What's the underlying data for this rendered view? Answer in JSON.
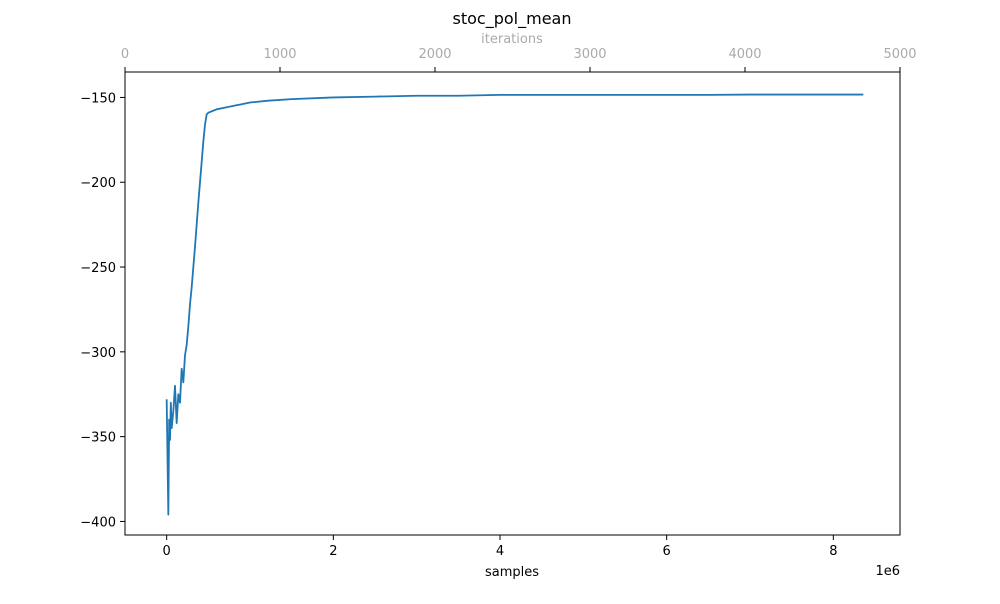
{
  "chart_data": {
    "type": "line",
    "title": "stoc_pol_mean",
    "xlabel": "samples",
    "x_offset_label": "1e6",
    "x_top_label": "iterations",
    "ylabel": "",
    "xlim": [
      -0.5,
      8.8
    ],
    "ylim": [
      -408,
      -135
    ],
    "x_top_lim": [
      0,
      5000
    ],
    "x_ticks": [
      0,
      2,
      4,
      6,
      8
    ],
    "x_tick_labels": [
      "0",
      "2",
      "4",
      "6",
      "8"
    ],
    "x_top_ticks": [
      0,
      1000,
      2000,
      3000,
      4000,
      5000
    ],
    "x_top_tick_labels": [
      "0",
      "1000",
      "2000",
      "3000",
      "4000",
      "5000"
    ],
    "y_ticks": [
      -400,
      -350,
      -300,
      -250,
      -200,
      -150
    ],
    "y_tick_labels": [
      "−400",
      "−350",
      "−300",
      "−250",
      "−200",
      "−150"
    ],
    "grid": false,
    "series": [
      {
        "color": "#1f77b4",
        "x": [
          0.0,
          0.01,
          0.02,
          0.03,
          0.04,
          0.05,
          0.06,
          0.08,
          0.1,
          0.12,
          0.14,
          0.16,
          0.18,
          0.2,
          0.22,
          0.24,
          0.26,
          0.28,
          0.3,
          0.32,
          0.34,
          0.36,
          0.38,
          0.4,
          0.42,
          0.44,
          0.46,
          0.48,
          0.5,
          0.55,
          0.6,
          0.7,
          0.8,
          0.9,
          1.0,
          1.2,
          1.5,
          2.0,
          2.5,
          3.0,
          3.5,
          4.0,
          4.5,
          5.0,
          5.5,
          6.0,
          6.5,
          7.0,
          7.5,
          8.0,
          8.36
        ],
        "y": [
          -328,
          -362,
          -396,
          -340,
          -352,
          -330,
          -345,
          -335,
          -320,
          -342,
          -325,
          -330,
          -310,
          -318,
          -302,
          -296,
          -285,
          -272,
          -262,
          -250,
          -238,
          -225,
          -212,
          -200,
          -188,
          -176,
          -166,
          -160,
          -159,
          -158,
          -157,
          -156,
          -155,
          -154,
          -153,
          -152,
          -151,
          -150,
          -149.5,
          -149,
          -149,
          -148.5,
          -148.5,
          -148.5,
          -148.5,
          -148.5,
          -148.5,
          -148.3,
          -148.3,
          -148.3,
          -148.3
        ]
      }
    ]
  }
}
